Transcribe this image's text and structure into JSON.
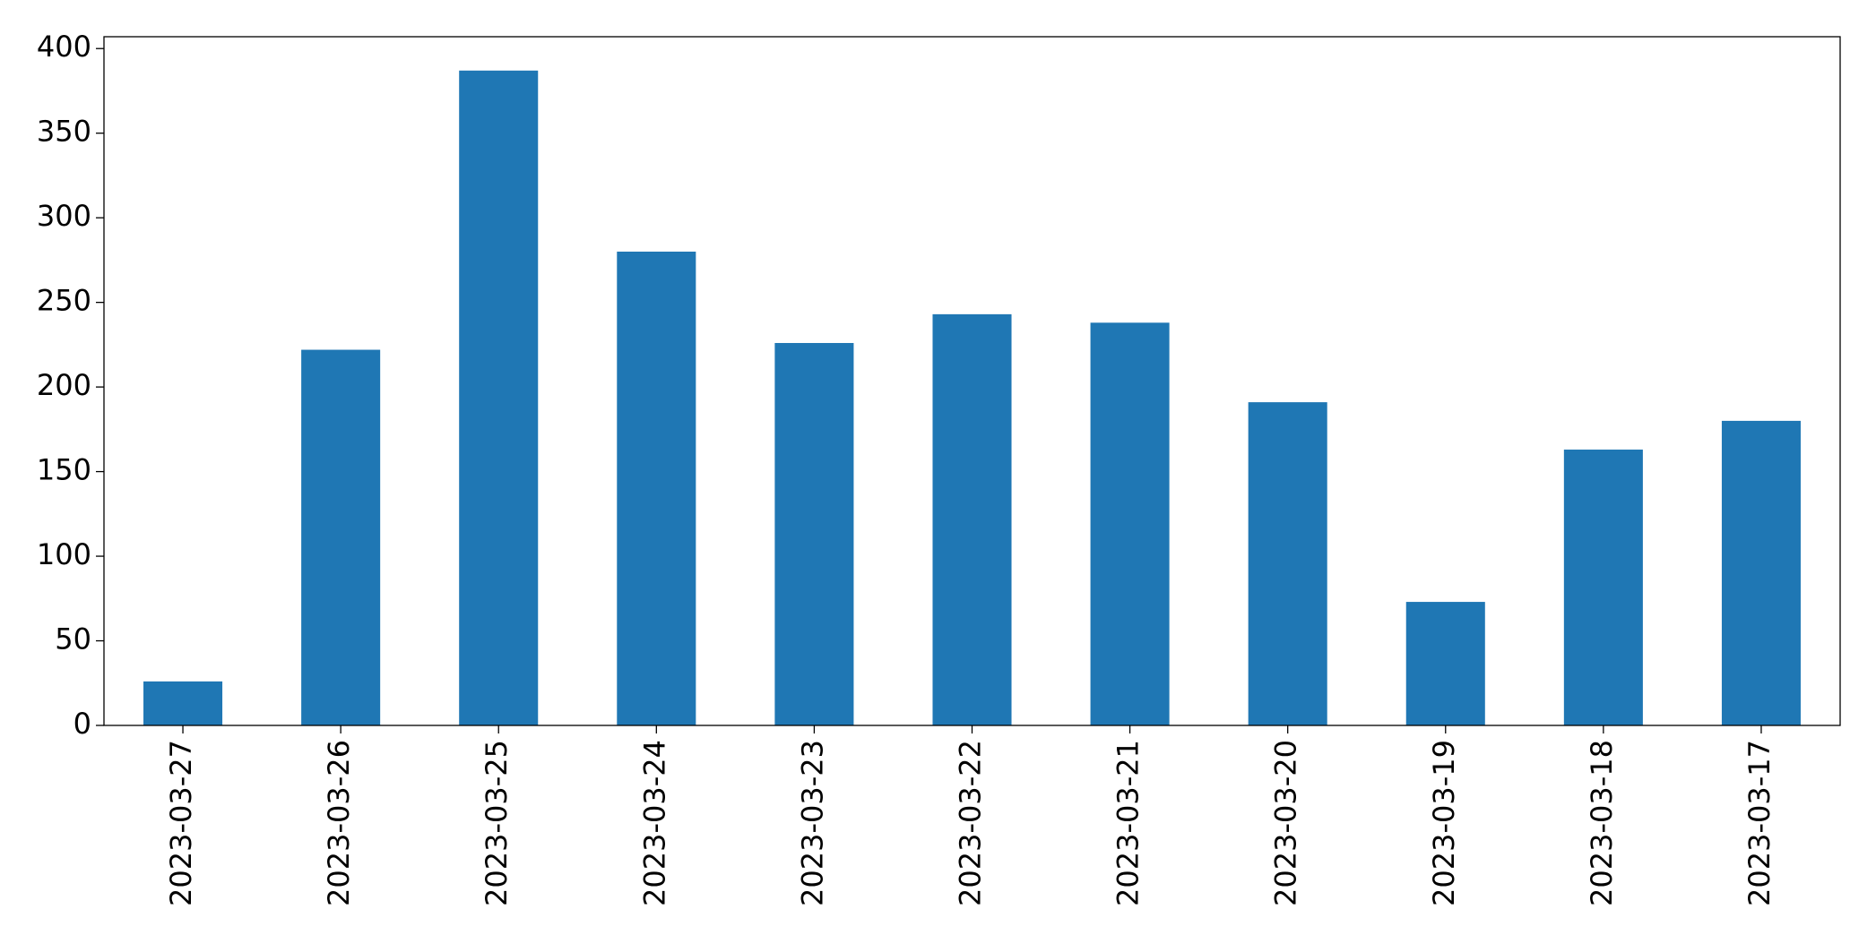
{
  "chart_data": {
    "type": "bar",
    "categories": [
      "2023-03-27",
      "2023-03-26",
      "2023-03-25",
      "2023-03-24",
      "2023-03-23",
      "2023-03-22",
      "2023-03-21",
      "2023-03-20",
      "2023-03-19",
      "2023-03-18",
      "2023-03-17"
    ],
    "values": [
      26,
      222,
      387,
      280,
      226,
      243,
      238,
      191,
      73,
      163,
      180
    ],
    "color": "#1f77b4",
    "ylim": [
      0,
      407
    ],
    "yticks": [
      0,
      50,
      100,
      150,
      200,
      250,
      300,
      350,
      400
    ],
    "grid": false
  }
}
